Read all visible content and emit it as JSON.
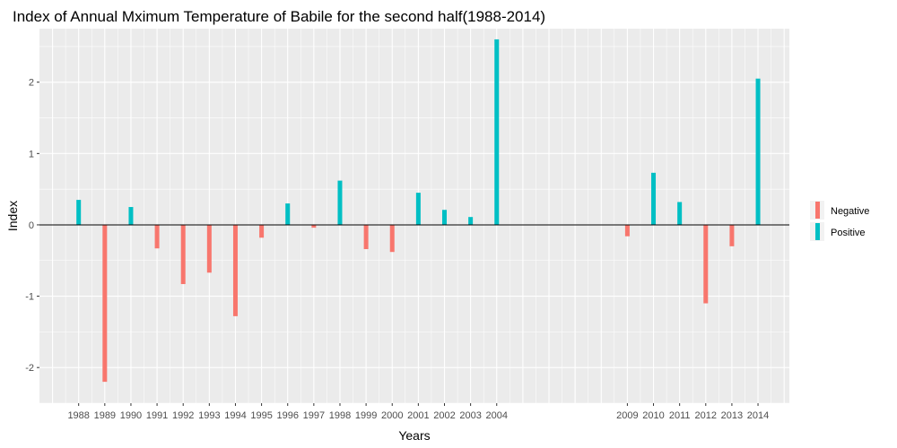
{
  "chart_data": {
    "type": "bar",
    "title": "Index of Annual Mximum Temperature of Babile for the second half(1988-2014)",
    "xlabel": "Years",
    "ylabel": "Index",
    "ylim": [
      -2.5,
      2.75
    ],
    "yticks": [
      -2,
      -1,
      0,
      1,
      2
    ],
    "xlim": [
      1986.5,
      2015.2
    ],
    "grid": true,
    "legend_position": "right",
    "legend": [
      {
        "label": "Negative",
        "color": "#F8766D"
      },
      {
        "label": "Positive",
        "color": "#00BFC4"
      }
    ],
    "categories": [
      "1988",
      "1989",
      "1990",
      "1991",
      "1992",
      "1993",
      "1994",
      "1995",
      "1996",
      "1997",
      "1998",
      "1999",
      "2000",
      "2001",
      "2002",
      "2003",
      "2004",
      "2009",
      "2010",
      "2011",
      "2012",
      "2013",
      "2014"
    ],
    "x": [
      1988,
      1989,
      1990,
      1991,
      1992,
      1993,
      1994,
      1995,
      1996,
      1997,
      1998,
      1999,
      2000,
      2001,
      2002,
      2003,
      2004,
      2009,
      2010,
      2011,
      2012,
      2013,
      2014
    ],
    "values": [
      0.35,
      -2.2,
      0.25,
      -0.33,
      -0.83,
      -0.67,
      -1.28,
      -0.18,
      0.3,
      -0.04,
      0.62,
      -0.34,
      -0.38,
      0.45,
      0.21,
      0.11,
      2.6,
      -0.16,
      0.73,
      0.32,
      -1.1,
      -0.3,
      2.05
    ],
    "groups": [
      "Positive",
      "Negative",
      "Positive",
      "Negative",
      "Negative",
      "Negative",
      "Negative",
      "Negative",
      "Positive",
      "Negative",
      "Positive",
      "Negative",
      "Negative",
      "Positive",
      "Positive",
      "Positive",
      "Positive",
      "Negative",
      "Positive",
      "Positive",
      "Negative",
      "Negative",
      "Positive"
    ],
    "colors": {
      "Negative": "#F8766D",
      "Positive": "#00BFC4",
      "panel": "#EBEBEB",
      "grid": "#FFFFFF",
      "zero_line": "#000000"
    }
  }
}
